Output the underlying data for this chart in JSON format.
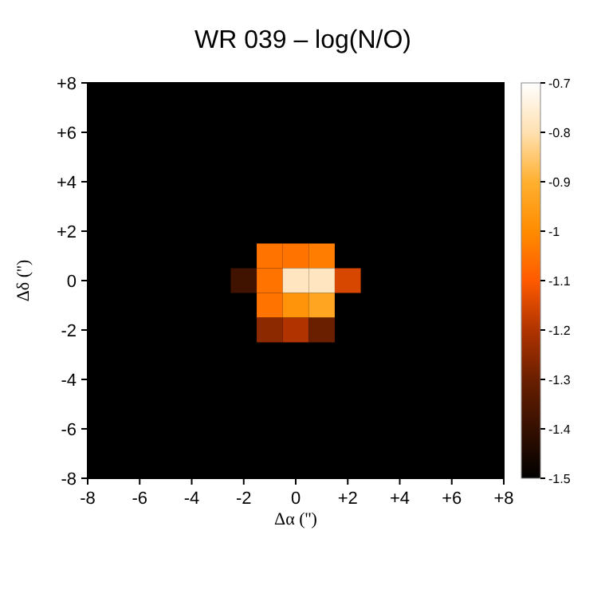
{
  "chart_data": {
    "type": "heatmap",
    "title": "WR 039 – log(N/O)",
    "xlabel": "Δα ('')",
    "ylabel": "Δδ ('')",
    "clabel": null,
    "x": [
      -2,
      -1,
      0,
      1,
      2
    ],
    "y": [
      1,
      0,
      -1,
      -2
    ],
    "cells": [
      [
        null,
        -1.05,
        -1.05,
        -1.03,
        null
      ],
      [
        -1.38,
        -1.05,
        -0.78,
        -0.78,
        -1.15
      ],
      [
        null,
        -1.05,
        -0.98,
        -0.93,
        null
      ],
      [
        null,
        -1.25,
        -1.2,
        -1.3,
        null
      ]
    ],
    "xlim": [
      -8,
      8
    ],
    "ylim": [
      -8,
      8
    ],
    "xticks": [
      -8,
      -6,
      -4,
      -2,
      0,
      {
        "value": 2,
        "label": "+2"
      },
      {
        "value": 4,
        "label": "+4"
      },
      {
        "value": 6,
        "label": "+6"
      },
      {
        "value": 8,
        "label": "+8"
      }
    ],
    "yticks": [
      -8,
      -6,
      -4,
      -2,
      0,
      {
        "value": 2,
        "label": "+2"
      },
      {
        "value": 4,
        "label": "+4"
      },
      {
        "value": 6,
        "label": "+6"
      },
      {
        "value": 8,
        "label": "+8"
      }
    ],
    "clim": [
      -1.5,
      -0.7
    ],
    "cticks": [
      -1.5,
      -1.4,
      -1.3,
      -1.2,
      -1.1,
      -1,
      -0.9,
      -0.8,
      -0.7
    ]
  }
}
